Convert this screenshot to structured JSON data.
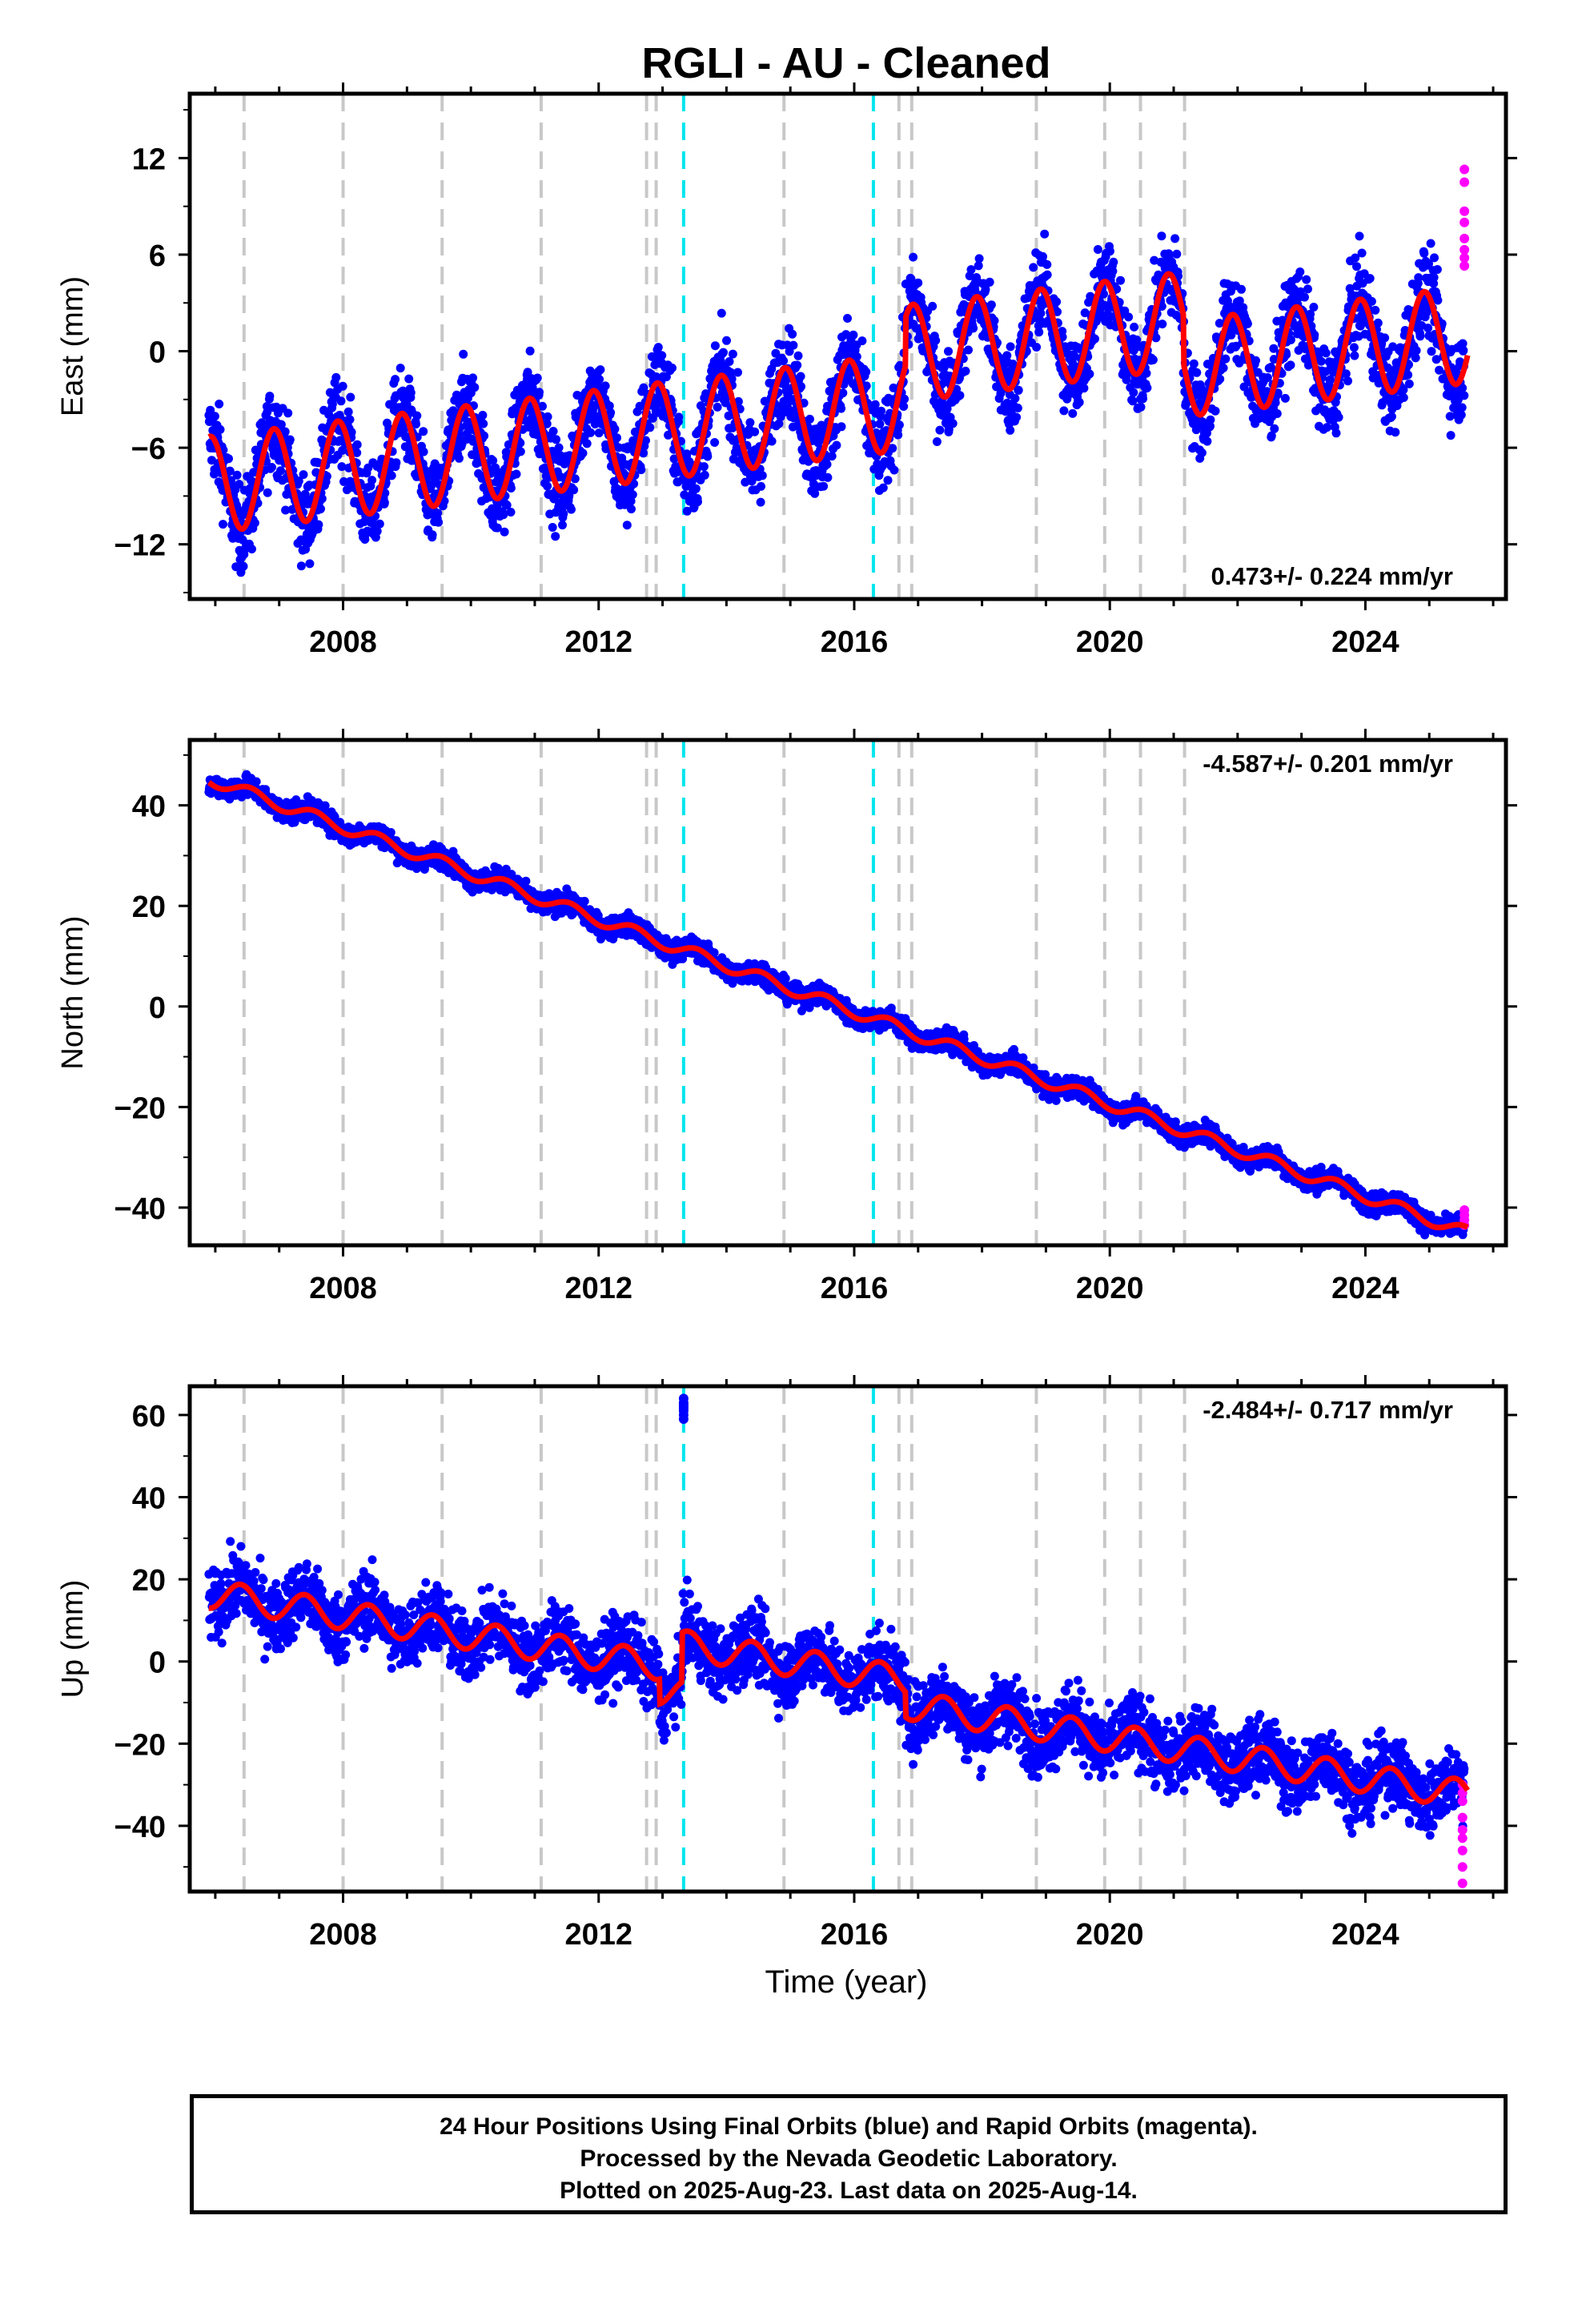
{
  "title": "RGLI  - AU - Cleaned",
  "xlabel": "Time (year)",
  "caption": {
    "line1": "24 Hour Positions Using Final Orbits (blue) and Rapid Orbits (magenta).",
    "line2": "Processed by the Nevada Geodetic Laboratory.",
    "line3": "Plotted on 2025-Aug-23. Last data on 2025-Aug-14."
  },
  "colors": {
    "final_orbits": "#0000ff",
    "rapid_orbits": "#ff00ff",
    "model": "#ff0000",
    "equipment_change": "#c8c8c8",
    "earthquake": "#00e5ee"
  },
  "chart_data": [
    {
      "type": "scatter",
      "panel": "east",
      "ylabel": "East (mm)",
      "xlim": [
        2005.6,
        2026.2
      ],
      "ylim": [
        -15.4,
        16
      ],
      "yticks": [
        12,
        6,
        0,
        -6,
        -12
      ],
      "xticks": [
        2008,
        2012,
        2016,
        2020,
        2024
      ],
      "rate_label": "0.473+/- 0.224 mm/yr",
      "rate_position": "bottom-right",
      "model_trend": {
        "start_year": 2005.9,
        "start_value": -8.3,
        "rate": 0.473,
        "seasonal_amplitude": 3.0,
        "peak_phase_year_fraction": 0.92,
        "offsets": [
          [
            2016.8,
            3.0
          ],
          [
            2021.15,
            -3.0
          ]
        ]
      },
      "scatter_spread": 1.9
    },
    {
      "type": "scatter",
      "panel": "north",
      "ylabel": "North (mm)",
      "xlim": [
        2005.6,
        2026.2
      ],
      "ylim": [
        -47.5,
        53
      ],
      "yticks": [
        40,
        20,
        0,
        -20,
        -40
      ],
      "xticks": [
        2008,
        2012,
        2016,
        2020,
        2024
      ],
      "rate_label": "-4.587+/- 0.201 mm/yr",
      "rate_position": "top-right",
      "model_trend": {
        "start_year": 2005.9,
        "start_value": 45.3,
        "rate": -4.587,
        "seasonal_amplitude": 1.2,
        "peak_phase_year_fraction": 0.55,
        "offsets": []
      },
      "scatter_spread": 1.5
    },
    {
      "type": "scatter",
      "panel": "up",
      "ylabel": "Up (mm)",
      "xlim": [
        2005.6,
        2026.2
      ],
      "ylim": [
        -56,
        67
      ],
      "yticks": [
        60,
        40,
        20,
        0,
        -20,
        -40
      ],
      "xticks": [
        2008,
        2012,
        2016,
        2020,
        2024
      ],
      "rate_label": "-2.484+/- 0.717 mm/yr",
      "rate_position": "top-right",
      "model_trend": {
        "start_year": 2005.9,
        "start_value": 16.5,
        "rate": -2.484,
        "seasonal_amplitude": 3.5,
        "peak_phase_year_fraction": 0.4,
        "offsets": [
          [
            2012.95,
            -6.0
          ],
          [
            2013.3,
            12.0
          ],
          [
            2016.8,
            -6.0
          ]
        ]
      },
      "scatter_spread": 6.0,
      "outlier_cluster": {
        "year": 2013.33,
        "values": [
          60,
          61,
          62,
          63,
          64,
          59,
          61.5,
          62.5
        ]
      },
      "rapid_orbit_points": [
        {
          "year": 2025.52,
          "values": [
            -30,
            -32,
            -34,
            -38,
            -41,
            -43,
            -46,
            -50,
            -54
          ]
        }
      ]
    }
  ],
  "equipment_changes": [
    2006.45,
    2008.0,
    2009.55,
    2011.1,
    2012.75,
    2012.9,
    2016.7,
    2016.9,
    2018.85,
    2019.92,
    2020.48,
    2021.17,
    2014.9
  ],
  "earthquakes": [
    2013.33,
    2016.3
  ],
  "east_rapid_orbit_points": [
    {
      "year": 2025.55,
      "values": [
        11.3,
        10.5,
        8.7,
        8.0,
        7.0,
        6.3,
        5.8,
        5.3
      ]
    }
  ],
  "north_rapid_orbit_points": [
    {
      "year": 2025.55,
      "values": [
        -40.5,
        -41.5,
        -42.5,
        -43.5
      ]
    }
  ]
}
